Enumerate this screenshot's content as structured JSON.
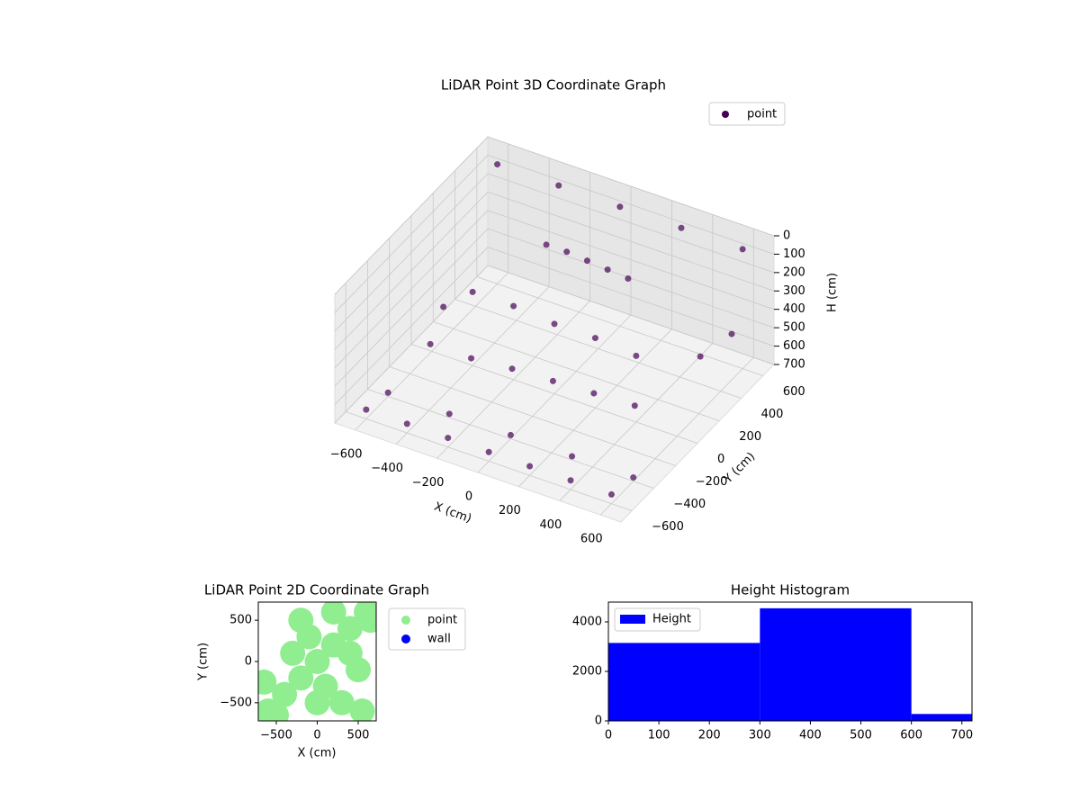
{
  "chart_data": [
    {
      "type": "scatter3d",
      "title": "LiDAR Point 3D Coordinate Graph",
      "x_label": "X (cm)",
      "y_label": "Y (cm)",
      "z_label": "H (cm)",
      "legend": "upper right",
      "series": [
        {
          "name": "point",
          "color": "#440154",
          "x": [
            -600,
            -400,
            -200,
            0,
            200,
            400,
            600,
            -500,
            -300,
            -100,
            100,
            300,
            500,
            -200,
            -100,
            0,
            100,
            200,
            -600,
            -300,
            0,
            300,
            600,
            -400,
            -200,
            0,
            200,
            400,
            -600,
            -300,
            0,
            300,
            600,
            500,
            600,
            -650
          ],
          "y": [
            -600,
            -600,
            -600,
            -600,
            -600,
            -600,
            -600,
            -200,
            -200,
            -200,
            -200,
            -200,
            -200,
            300,
            300,
            300,
            300,
            300,
            600,
            600,
            600,
            600,
            600,
            0,
            0,
            0,
            0,
            0,
            -400,
            -400,
            -400,
            -400,
            -400,
            400,
            500,
            200
          ],
          "z": [
            650,
            650,
            650,
            650,
            650,
            650,
            650,
            500,
            500,
            480,
            470,
            460,
            450,
            150,
            150,
            160,
            170,
            180,
            50,
            50,
            50,
            50,
            50,
            300,
            300,
            320,
            320,
            340,
            680,
            680,
            680,
            680,
            680,
            550,
            450,
            600
          ]
        }
      ],
      "xlim": [
        -700,
        700
      ],
      "ylim": [
        -700,
        700
      ],
      "zlim": [
        700,
        0
      ],
      "xticks": [
        {
          "value": -600,
          "label": "−600"
        },
        {
          "value": -400,
          "label": "−400"
        },
        {
          "value": -200,
          "label": "−200"
        },
        0,
        200,
        400,
        600
      ],
      "yticks": [
        {
          "value": -600,
          "label": "−600"
        },
        {
          "value": -400,
          "label": "−400"
        },
        {
          "value": -200,
          "label": "−200"
        },
        0,
        200,
        400,
        600
      ],
      "zticks": [
        0,
        100,
        200,
        300,
        400,
        500,
        600,
        700
      ],
      "grid": true
    },
    {
      "type": "scatter",
      "title": "LiDAR Point 2D Coordinate Graph",
      "x_label": "X (cm)",
      "y_label": "Y (cm)",
      "legend": "outside right",
      "series": [
        {
          "name": "point",
          "color": "#90ee90",
          "x": [
            -600,
            -400,
            -200,
            0,
            200,
            400,
            600,
            -300,
            100,
            500,
            -100,
            300,
            -500,
            200,
            650,
            -650,
            0,
            400,
            -200,
            550
          ],
          "y": [
            -600,
            -400,
            -200,
            0,
            200,
            400,
            600,
            100,
            -300,
            -100,
            300,
            -500,
            -650,
            600,
            500,
            -250,
            -500,
            100,
            500,
            -600
          ]
        },
        {
          "name": "wall",
          "color": "#0000ff",
          "x": [],
          "y": []
        }
      ],
      "xlim": [
        -720,
        720
      ],
      "ylim": [
        -720,
        720
      ],
      "xticks": [
        {
          "value": -500,
          "label": "−500"
        },
        0,
        500
      ],
      "yticks": [
        {
          "value": -500,
          "label": "−500"
        },
        0,
        500
      ]
    },
    {
      "type": "histogram",
      "title": "Height Histogram",
      "legend": "upper left",
      "series": [
        {
          "name": "Height",
          "color": "#0000ff",
          "values": [
            3150,
            4550,
            280
          ]
        }
      ],
      "bins": [
        0,
        300,
        600,
        720
      ],
      "xlim": [
        0,
        720
      ],
      "ylim": [
        0,
        4800
      ],
      "xticks": [
        0,
        100,
        200,
        300,
        400,
        500,
        600,
        700
      ],
      "yticks": [
        0,
        2000,
        4000
      ]
    }
  ]
}
